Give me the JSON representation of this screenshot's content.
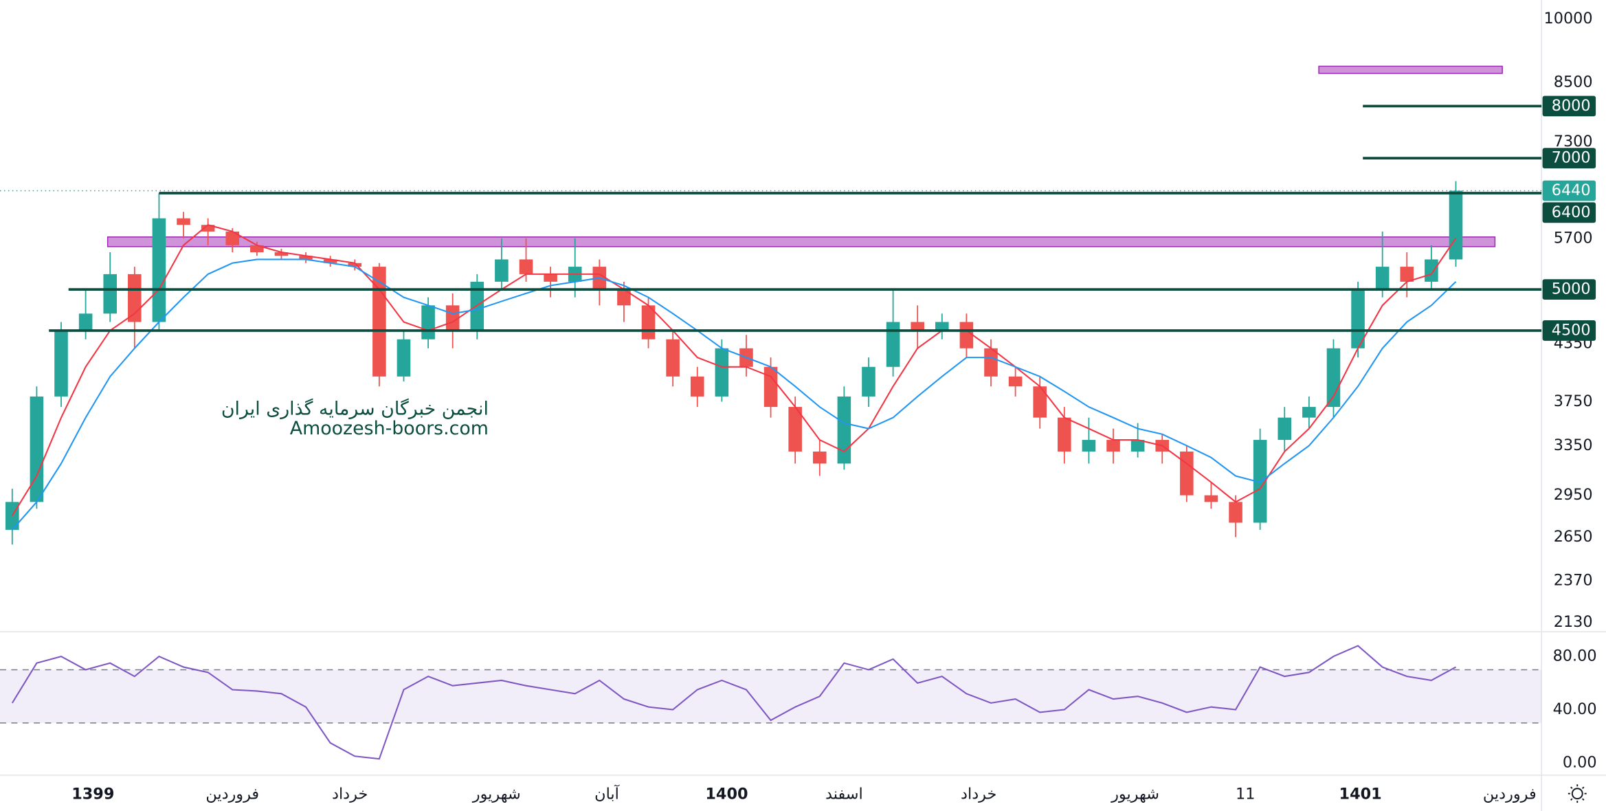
{
  "chart_data": [
    {
      "type": "candlestick",
      "log_scale": true,
      "xlim": [
        -0.5,
        62.5
      ],
      "ylim": [
        2090,
        10500
      ],
      "yticks": [
        10000,
        8500,
        7300,
        5700,
        4350,
        3750,
        3350,
        2950,
        2650,
        2370,
        2130
      ],
      "x": [
        0,
        1,
        2,
        3,
        4,
        5,
        6,
        7,
        8,
        9,
        10,
        11,
        12,
        13,
        14,
        15,
        16,
        17,
        18,
        19,
        20,
        21,
        22,
        23,
        24,
        25,
        26,
        27,
        28,
        29,
        30,
        31,
        32,
        33,
        34,
        35,
        36,
        37,
        38,
        39,
        40,
        41,
        42,
        43,
        44,
        45,
        46,
        47,
        48,
        49,
        50,
        51,
        52,
        53,
        54,
        55,
        56,
        57,
        58,
        59
      ],
      "open": [
        2700,
        2900,
        3800,
        4500,
        4700,
        5200,
        4600,
        6000,
        5900,
        5800,
        5600,
        5500,
        5450,
        5400,
        5350,
        5300,
        4000,
        4400,
        4800,
        4500,
        5100,
        5400,
        5200,
        5100,
        5300,
        5000,
        4800,
        4400,
        4000,
        3800,
        4300,
        4100,
        3700,
        3300,
        3200,
        3800,
        4100,
        4600,
        4500,
        4600,
        4300,
        4000,
        3900,
        3600,
        3300,
        3400,
        3300,
        3400,
        3300,
        2950,
        2900,
        2750,
        3400,
        3600,
        3700,
        4300,
        5000,
        5300,
        5100,
        5400
      ],
      "high": [
        3000,
        3900,
        4600,
        5000,
        5500,
        5300,
        6400,
        6100,
        6000,
        5850,
        5650,
        5550,
        5500,
        5450,
        5400,
        5350,
        4500,
        4900,
        4950,
        5200,
        5700,
        5700,
        5300,
        5700,
        5400,
        5100,
        4900,
        4500,
        4100,
        4400,
        4450,
        4200,
        3800,
        3400,
        3900,
        4200,
        5000,
        4800,
        4700,
        4700,
        4400,
        4100,
        4000,
        3700,
        3600,
        3500,
        3550,
        3450,
        3350,
        3050,
        2950,
        3500,
        3700,
        3800,
        4400,
        5100,
        5800,
        5500,
        5600,
        6600
      ],
      "low": [
        2600,
        2850,
        3700,
        4400,
        4600,
        4300,
        4500,
        5700,
        5600,
        5500,
        5450,
        5400,
        5350,
        5300,
        5250,
        3900,
        3950,
        4300,
        4300,
        4400,
        5000,
        5100,
        4900,
        4900,
        4800,
        4600,
        4300,
        3900,
        3700,
        3750,
        4000,
        3600,
        3200,
        3100,
        3150,
        3700,
        4000,
        4300,
        4400,
        4200,
        3900,
        3800,
        3500,
        3200,
        3200,
        3200,
        3250,
        3200,
        2900,
        2850,
        2650,
        2700,
        3300,
        3500,
        3600,
        4200,
        4900,
        4900,
        5000,
        5300
      ],
      "close": [
        2900,
        3800,
        4500,
        4700,
        5200,
        4600,
        6000,
        5900,
        5800,
        5600,
        5500,
        5450,
        5400,
        5350,
        5300,
        4000,
        4400,
        4800,
        4500,
        5100,
        5400,
        5200,
        5100,
        5300,
        5000,
        4800,
        4400,
        4000,
        3800,
        4300,
        4100,
        3700,
        3300,
        3200,
        3800,
        4100,
        4600,
        4500,
        4600,
        4300,
        4000,
        3900,
        3600,
        3300,
        3400,
        3300,
        3400,
        3300,
        2950,
        2900,
        2750,
        3400,
        3600,
        3700,
        4300,
        5000,
        5300,
        5100,
        5400,
        6440
      ],
      "up_color": "#26a69a",
      "down_color": "#ef5350",
      "series": [
        {
          "color": "#f23645",
          "values": [
            2800,
            3100,
            3600,
            4100,
            4500,
            4700,
            5000,
            5600,
            5900,
            5800,
            5600,
            5500,
            5450,
            5400,
            5350,
            5000,
            4600,
            4500,
            4600,
            4800,
            5000,
            5200,
            5200,
            5200,
            5200,
            5000,
            4800,
            4500,
            4200,
            4100,
            4100,
            4000,
            3700,
            3400,
            3300,
            3500,
            3900,
            4300,
            4500,
            4500,
            4300,
            4100,
            3900,
            3600,
            3500,
            3400,
            3400,
            3350,
            3200,
            3050,
            2900,
            3000,
            3300,
            3500,
            3800,
            4300,
            4800,
            5100,
            5200,
            5700
          ]
        },
        {
          "color": "#2196f3",
          "values": [
            2700,
            2900,
            3200,
            3600,
            4000,
            4300,
            4600,
            4900,
            5200,
            5350,
            5400,
            5400,
            5400,
            5350,
            5300,
            5100,
            4900,
            4800,
            4700,
            4750,
            4850,
            4950,
            5050,
            5100,
            5150,
            5050,
            4900,
            4700,
            4500,
            4300,
            4200,
            4100,
            3900,
            3700,
            3550,
            3500,
            3600,
            3800,
            4000,
            4200,
            4200,
            4100,
            4000,
            3850,
            3700,
            3600,
            3500,
            3450,
            3350,
            3250,
            3100,
            3050,
            3200,
            3350,
            3600,
            3900,
            4300,
            4600,
            4800,
            5100
          ]
        }
      ],
      "levels": [
        {
          "value": 8000,
          "from": 55.2
        },
        {
          "value": 7000,
          "from": 55.2
        },
        {
          "value": 6400,
          "from": 6.0
        },
        {
          "value": 5000,
          "from": 2.3
        },
        {
          "value": 4500,
          "from": 1.5
        }
      ],
      "level_color": "#0b4d3f",
      "zones": [
        {
          "low": 8700,
          "high": 8860,
          "from": 53.4,
          "to": 60.9
        },
        {
          "low": 5580,
          "high": 5720,
          "from": 3.9,
          "to": 60.6
        }
      ],
      "zone_color": "#ce93d8",
      "last_price": 6440,
      "last_color": "#26a69a",
      "annotations": [
        "انجمن خبرگان سرمایه گذاری ایران",
        "Amoozesh-boors.com"
      ]
    },
    {
      "type": "line",
      "xlim": [
        -0.5,
        62.5
      ],
      "ylim": [
        -7.7,
        96.2
      ],
      "yticks": [
        {
          "value": 80,
          "label": "80.00"
        },
        {
          "value": 40,
          "label": "40.00"
        },
        {
          "value": 0,
          "label": "0.00"
        }
      ],
      "band": [
        30,
        70
      ],
      "color": "#7e57c2",
      "values": [
        45,
        75,
        80,
        70,
        75,
        65,
        80,
        72,
        68,
        55,
        54,
        52,
        42,
        15,
        5,
        3,
        55,
        65,
        58,
        60,
        62,
        58,
        55,
        52,
        62,
        48,
        42,
        40,
        55,
        62,
        55,
        32,
        42,
        50,
        75,
        70,
        78,
        60,
        65,
        52,
        45,
        48,
        38,
        40,
        55,
        48,
        50,
        45,
        38,
        42,
        40,
        72,
        65,
        68,
        80,
        88,
        72,
        65,
        62,
        72
      ],
      "xticks": [
        {
          "value": 3.3,
          "label": "1399"
        },
        {
          "value": 9.0,
          "label": "فروردین"
        },
        {
          "value": 13.8,
          "label": "خرداد"
        },
        {
          "value": 19.8,
          "label": "شهریور"
        },
        {
          "value": 24.3,
          "label": "آبان"
        },
        {
          "value": 29.2,
          "label": "1400"
        },
        {
          "value": 34.0,
          "label": "اسفند"
        },
        {
          "value": 39.5,
          "label": "خرداد"
        },
        {
          "value": 45.9,
          "label": "شهریور"
        },
        {
          "value": 50.4,
          "label": "11"
        },
        {
          "value": 55.1,
          "label": "1401"
        },
        {
          "value": 61.2,
          "label": "فروردین"
        }
      ]
    }
  ]
}
